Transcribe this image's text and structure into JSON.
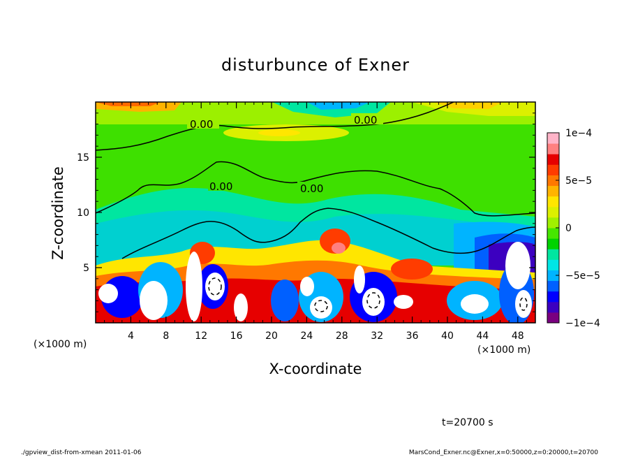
{
  "title": "disturbunce of Exner",
  "chart_data": {
    "type": "heatmap",
    "title": "disturbunce of Exner",
    "xlabel": "X-coordinate",
    "ylabel": "Z-coordinate",
    "x_unit": "(×1000 m)",
    "z_unit": "(×1000 m)",
    "xlim": [
      0,
      50
    ],
    "ylim": [
      0,
      20
    ],
    "x_ticks": [
      4,
      8,
      12,
      16,
      20,
      24,
      28,
      32,
      36,
      40,
      44,
      48
    ],
    "x_tick_labels": [
      "4",
      "8",
      "12",
      "16",
      "20",
      "24",
      "28",
      "32",
      "36",
      "40",
      "44",
      "48"
    ],
    "y_ticks": [
      5,
      10,
      15
    ],
    "y_tick_labels": [
      "5",
      "10",
      "15"
    ],
    "colorbar": {
      "min": -0.0001,
      "max": 0.0001,
      "labels": [
        {
          "value": 0.0001,
          "text": "1e−4"
        },
        {
          "value": 5e-05,
          "text": "5e−5"
        },
        {
          "value": 0,
          "text": "0"
        },
        {
          "value": -5e-05,
          "text": "−5e−5"
        },
        {
          "value": -0.0001,
          "text": "−1e−4"
        }
      ],
      "colors": [
        "#7a0080",
        "#3c00c0",
        "#0000ff",
        "#0060ff",
        "#00b4ff",
        "#00e6e6",
        "#00e6a0",
        "#00d200",
        "#46e600",
        "#a0f000",
        "#dcf000",
        "#ffe600",
        "#ffb400",
        "#ff7800",
        "#ff3c00",
        "#e60000",
        "#ff8080",
        "#ffb4c8"
      ]
    },
    "contours": [
      {
        "value": 0,
        "label": "0.00",
        "z_approx": 17.5
      },
      {
        "value": 0,
        "label": "0.00",
        "z_approx": 12.5
      }
    ],
    "time_label": "t=20700 s"
  },
  "footer": {
    "left": "./gpview_dist-from-xmean  2011-01-06",
    "right": "MarsCond_Exner.nc@Exner,x=0:50000,z=0:20000,t=20700"
  }
}
